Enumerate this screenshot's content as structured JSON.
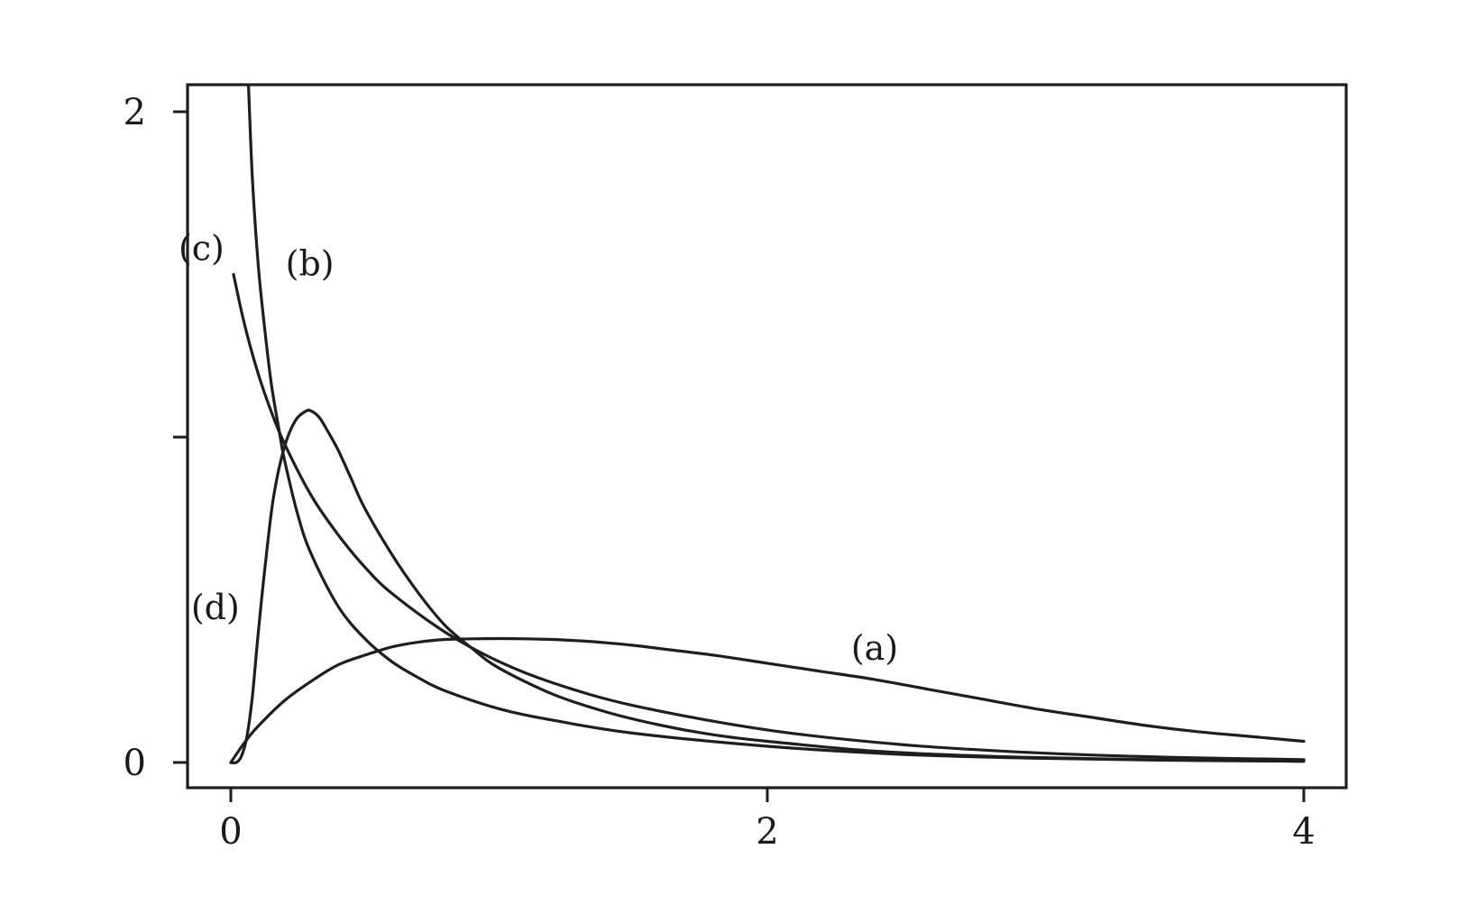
{
  "chart_data": {
    "type": "line",
    "title": "",
    "xlabel": "",
    "ylabel": "",
    "xlim": [
      0,
      4
    ],
    "ylim": [
      0,
      2
    ],
    "x_ticks": [
      0,
      2,
      4
    ],
    "x_tick_labels": [
      "0",
      "2",
      "4"
    ],
    "y_ticks": [
      0,
      1,
      2
    ],
    "y_tick_labels": [
      "0",
      "",
      "2"
    ],
    "grid": false,
    "legend": "none",
    "series": [
      {
        "name": "(a)",
        "x": [
          0,
          0.05,
          0.1,
          0.2,
          0.3,
          0.4,
          0.5,
          0.6,
          0.7,
          0.8,
          0.9,
          1.0,
          1.1,
          1.2,
          1.3,
          1.4,
          1.5,
          1.6,
          1.8,
          2.0,
          2.2,
          2.4,
          2.6,
          2.8,
          3.0,
          3.2,
          3.4,
          3.6,
          3.8,
          4.0
        ],
        "y": [
          0.0,
          0.06,
          0.11,
          0.19,
          0.25,
          0.3,
          0.33,
          0.355,
          0.37,
          0.378,
          0.38,
          0.381,
          0.38,
          0.378,
          0.374,
          0.368,
          0.36,
          0.35,
          0.33,
          0.305,
          0.28,
          0.255,
          0.225,
          0.195,
          0.165,
          0.14,
          0.115,
          0.095,
          0.08,
          0.065
        ]
      },
      {
        "name": "(b)",
        "x": [
          0.066,
          0.08,
          0.1,
          0.12,
          0.15,
          0.18,
          0.2,
          0.25,
          0.3,
          0.4,
          0.5,
          0.6,
          0.7,
          0.8,
          1.0,
          1.2,
          1.5,
          2.0,
          2.5,
          3.0,
          3.5,
          4.0
        ],
        "y": [
          2.08,
          1.8,
          1.55,
          1.38,
          1.17,
          1.02,
          0.93,
          0.76,
          0.64,
          0.48,
          0.38,
          0.31,
          0.26,
          0.22,
          0.165,
          0.13,
          0.09,
          0.05,
          0.025,
          0.013,
          0.007,
          0.004
        ]
      },
      {
        "name": "(c)",
        "x": [
          0.01,
          0.05,
          0.1,
          0.15,
          0.2,
          0.3,
          0.4,
          0.5,
          0.6,
          0.8,
          1.0,
          1.2,
          1.5,
          2.0,
          2.5,
          3.0,
          3.5,
          4.0
        ],
        "y": [
          1.5,
          1.35,
          1.2,
          1.08,
          0.98,
          0.82,
          0.7,
          0.6,
          0.52,
          0.4,
          0.31,
          0.245,
          0.175,
          0.1,
          0.055,
          0.03,
          0.016,
          0.009
        ]
      },
      {
        "name": "(d)",
        "x": [
          0,
          0.02,
          0.04,
          0.06,
          0.08,
          0.1,
          0.13,
          0.16,
          0.2,
          0.24,
          0.28,
          0.3,
          0.33,
          0.36,
          0.4,
          0.45,
          0.5,
          0.6,
          0.7,
          0.8,
          0.9,
          1.0,
          1.2,
          1.4,
          1.6,
          1.8,
          2.0,
          2.4,
          2.8,
          3.2,
          3.6,
          4.0
        ],
        "y": [
          0.0,
          0.0,
          0.02,
          0.08,
          0.2,
          0.38,
          0.62,
          0.82,
          0.97,
          1.05,
          1.08,
          1.08,
          1.06,
          1.02,
          0.96,
          0.87,
          0.78,
          0.64,
          0.52,
          0.42,
          0.35,
          0.29,
          0.21,
          0.155,
          0.115,
          0.085,
          0.065,
          0.035,
          0.02,
          0.012,
          0.007,
          0.004
        ]
      }
    ]
  }
}
